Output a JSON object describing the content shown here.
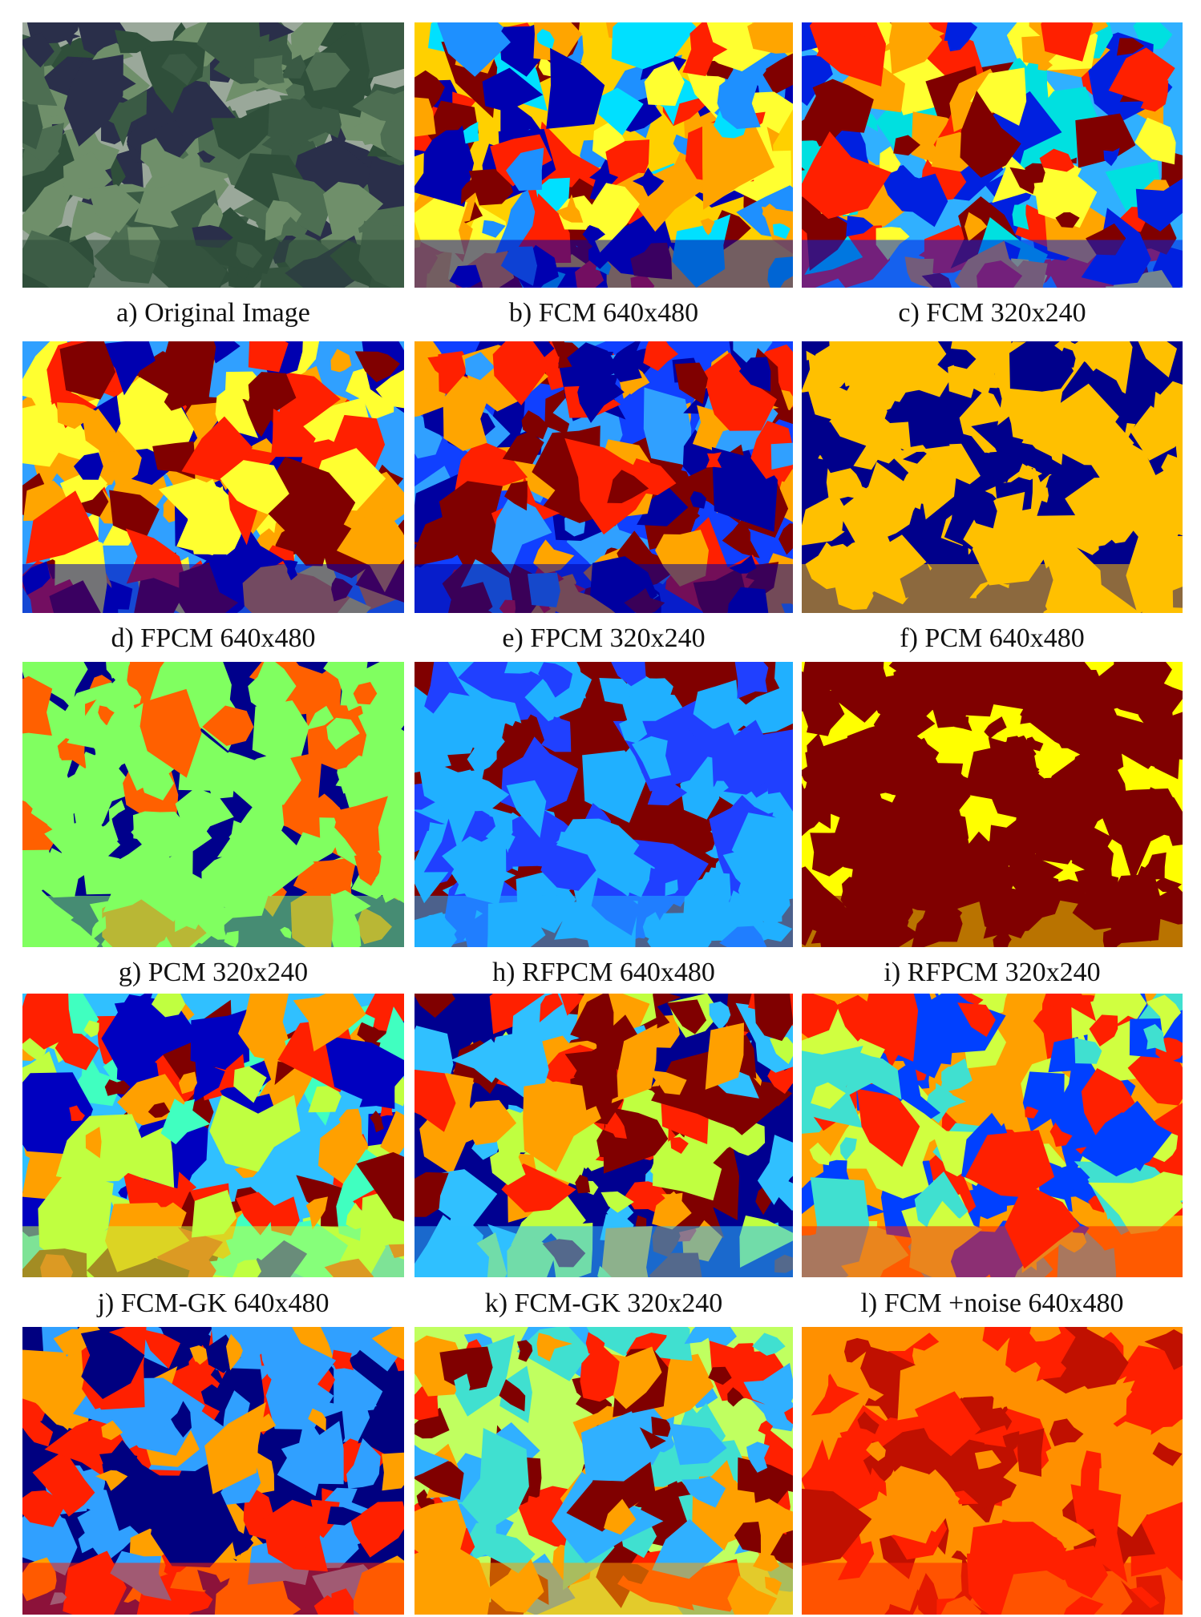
{
  "figure": {
    "captions": [
      "a) Original Image",
      "b) FCM 640x480",
      "c) FCM 320x240",
      "d) FPCM 640x480",
      "e) FPCM 320x240",
      "f) PCM 640x480",
      "g) PCM 320x240",
      "h) RFPCM 640x480",
      "i) RFPCM 320x240",
      "j) FCM-GK 640x480",
      "k) FCM-GK 320x240",
      "l) FCM +noise 640x480"
    ]
  }
}
